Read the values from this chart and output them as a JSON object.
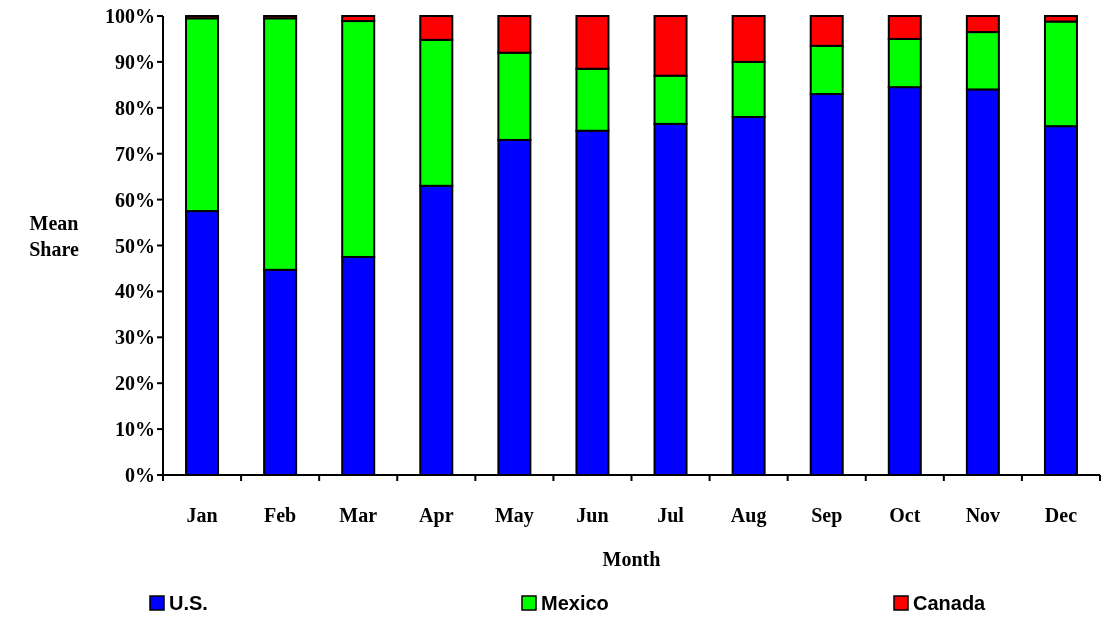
{
  "chart_data": {
    "type": "bar",
    "stacked": true,
    "xlabel": "Month",
    "ylabel": "Mean Share",
    "categories": [
      "Jan",
      "Feb",
      "Mar",
      "Apr",
      "May",
      "Jun",
      "Jul",
      "Aug",
      "Sep",
      "Oct",
      "Nov",
      "Dec"
    ],
    "series": [
      {
        "name": "U.S.",
        "color": "#0000ff",
        "values": [
          57.5,
          44.7,
          47.5,
          63,
          73,
          75,
          76.5,
          78,
          83,
          84.5,
          84,
          76
        ]
      },
      {
        "name": "Mexico",
        "color": "#00ff00",
        "values": [
          42,
          54.8,
          51.4,
          31.8,
          19,
          13.5,
          10.5,
          12,
          10.5,
          10.5,
          12.5,
          22.8
        ]
      },
      {
        "name": "Canada",
        "color": "#ff0000",
        "values": [
          0.5,
          0.5,
          1.1,
          5.2,
          8,
          11.5,
          13,
          10,
          6.5,
          5,
          3.5,
          1.2
        ]
      }
    ],
    "ylim": [
      0,
      100
    ],
    "yticks": [
      {
        "value": 0,
        "label": "0%"
      },
      {
        "value": 10,
        "label": "10%"
      },
      {
        "value": 20,
        "label": "20%"
      },
      {
        "value": 30,
        "label": "30%"
      },
      {
        "value": 40,
        "label": "40%"
      },
      {
        "value": 50,
        "label": "50%"
      },
      {
        "value": 60,
        "label": "60%"
      },
      {
        "value": 70,
        "label": "70%"
      },
      {
        "value": 80,
        "label": "80%"
      },
      {
        "value": 90,
        "label": "90%"
      },
      {
        "value": 100,
        "label": "100%"
      }
    ],
    "legend": "bottom"
  }
}
